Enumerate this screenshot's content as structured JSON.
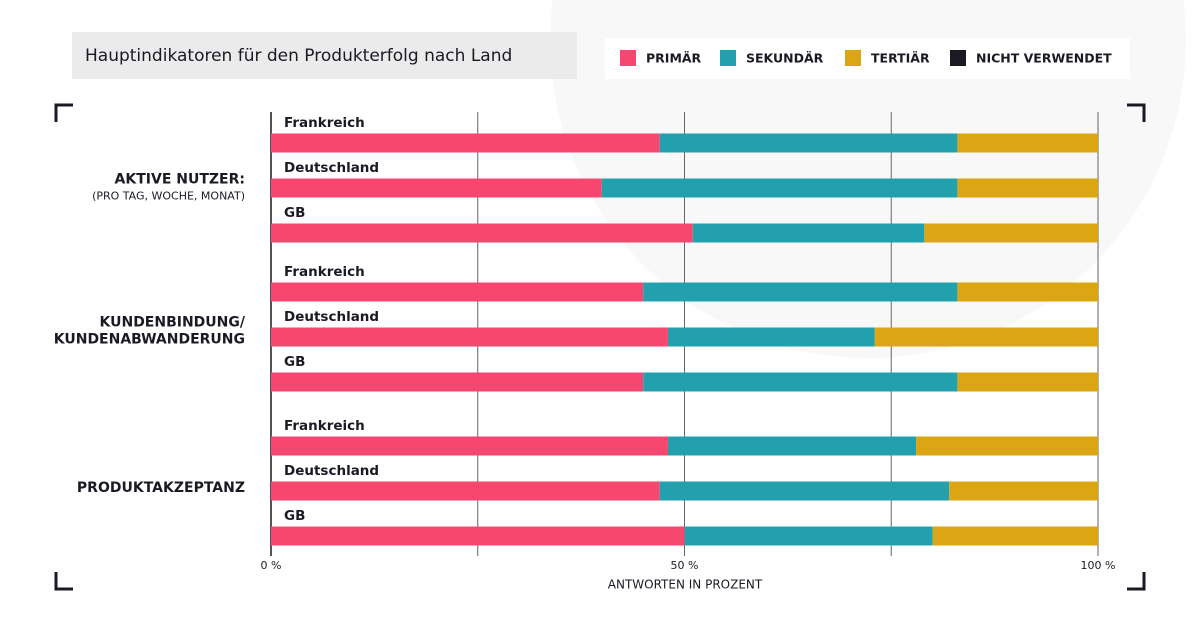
{
  "chart_data": {
    "type": "stacked_barh",
    "title": "Hauptindikatoren für den Produkterfolg nach Land",
    "xlabel": "ANTWORTEN IN PROZENT",
    "groups": [
      {
        "label": [
          "AKTIVE NUTZER:"
        ],
        "sublabel": "(PRO TAG, WOCHE, MONAT)"
      },
      {
        "label": [
          "KUNDENBINDUNG/",
          "KUNDENABWANDERUNG"
        ]
      },
      {
        "label": [
          "PRODUKTAKZEPTANZ"
        ]
      }
    ],
    "categories": [
      "Frankreich",
      "Deutschland",
      "GB",
      "Frankreich",
      "Deutschland",
      "GB",
      "Frankreich",
      "Deutschland",
      "GB"
    ],
    "series": [
      {
        "name": "PRIMÄR",
        "color": "#f5476f",
        "values": [
          47,
          40,
          51,
          45,
          48,
          45,
          48,
          47,
          50
        ]
      },
      {
        "name": "SEKUNDÄR",
        "color": "#22a0ae",
        "values": [
          36,
          43,
          28,
          38,
          25,
          38,
          30,
          35,
          30
        ]
      },
      {
        "name": "TERTIÄR",
        "color": "#dba514",
        "values": [
          17,
          17,
          21,
          17,
          27,
          17,
          22,
          18,
          20
        ]
      },
      {
        "name": "NICHT VERWENDET",
        "color": "#1a1a24",
        "values": [
          0,
          0,
          0,
          0,
          0,
          0,
          0,
          0,
          0
        ]
      }
    ],
    "xlim": [
      0,
      100
    ],
    "xticks": [
      {
        "value": 0,
        "label": "0 %"
      },
      {
        "value": 50,
        "label": "50 %"
      },
      {
        "value": 100,
        "label": "100 %"
      }
    ],
    "minor_xticks": [
      25,
      75
    ],
    "grid": true
  }
}
